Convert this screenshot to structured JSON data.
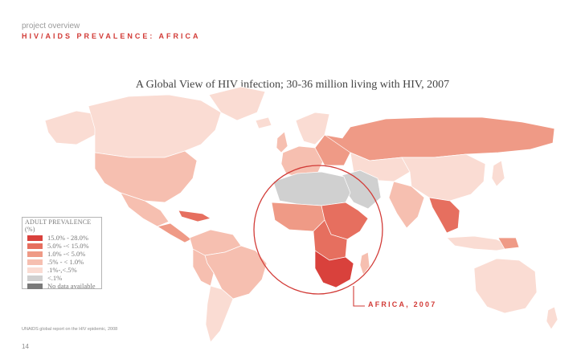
{
  "header": {
    "subtitle": "project overview",
    "title": "HIV/AIDS PREVALENCE: AFRICA"
  },
  "map": {
    "title": "A Global View of HIV infection; 30-36 million living with HIV, 2007",
    "highlight_region": "Africa",
    "highlight_label": "AFRICA, 2007"
  },
  "legend": {
    "title": "ADULT PREVALENCE (%)",
    "items": [
      {
        "label": "15.0% - 28.0%",
        "color": "#d9413c"
      },
      {
        "label": "5.0% -< 15.0%",
        "color": "#e66f5f"
      },
      {
        "label": "1.0% -< 5.0%",
        "color": "#ef9a86"
      },
      {
        "label": ".5% - < 1.0%",
        "color": "#f6bfb0"
      },
      {
        "label": ".1%-,<.5%",
        "color": "#fadcd3"
      },
      {
        "label": "<.1%",
        "color": "#d0d0d0"
      },
      {
        "label": "No data available",
        "color": "#7a7a7a"
      }
    ]
  },
  "colors": {
    "accent": "#d23b37",
    "border": "#ffffff"
  },
  "footer": {
    "source": "UNAIDS global report on the HIV epidemic, 2008",
    "page_number": "14"
  }
}
